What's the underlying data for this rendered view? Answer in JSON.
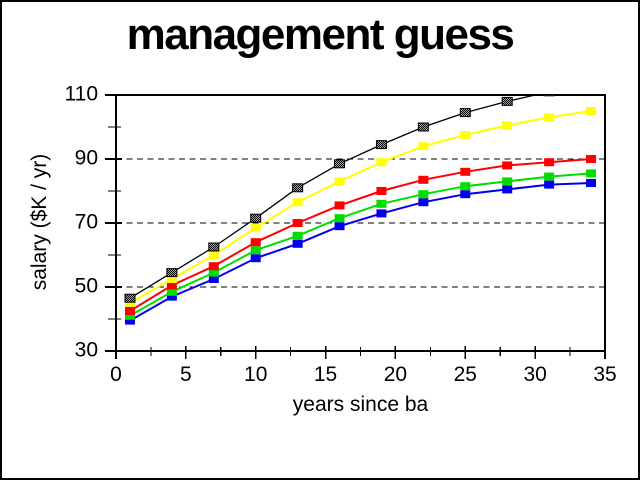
{
  "window": {
    "background_color": "#FFFFFF",
    "border_color": "#000000"
  },
  "chart_data": {
    "type": "line",
    "title": "management guess",
    "xlabel": "years since ba",
    "ylabel": "salary ($K / yr)",
    "xlim": [
      0,
      35
    ],
    "ylim": [
      30,
      110
    ],
    "x_tick_labels": [
      "0",
      "5",
      "10",
      "15",
      "20",
      "25",
      "30",
      "35"
    ],
    "x_ticks_major": [
      0,
      5,
      10,
      15,
      20,
      25,
      30,
      35
    ],
    "x_ticks_minor": [
      2.5,
      7.5,
      12.5,
      17.5,
      22.5,
      27.5,
      32.5
    ],
    "y_tick_labels": [
      "30",
      "50",
      "70",
      "90",
      "110"
    ],
    "y_ticks_major": [
      30,
      50,
      70,
      90,
      110
    ],
    "y_ticks_minor": [
      40,
      60,
      80,
      100
    ],
    "dashed_gridlines_at": [
      50,
      70,
      90
    ],
    "grid": "horizontal-dashed",
    "legend": "none",
    "marker_shape": "square",
    "x": [
      1,
      4,
      7,
      10,
      13,
      16,
      19,
      22,
      25,
      28,
      31,
      34
    ],
    "series": [
      {
        "name": "blue",
        "marker_color": "#0000EE",
        "line_color": "#0000EE",
        "marker": "solid-square",
        "values": [
          39.5,
          47,
          52.5,
          59,
          63.5,
          69,
          73,
          76.5,
          79,
          80.5,
          82,
          82.5
        ]
      },
      {
        "name": "green",
        "marker_color": "#00DD00",
        "line_color": "#00DD00",
        "marker": "solid-square",
        "values": [
          41,
          48.5,
          54.5,
          61.5,
          66,
          71.5,
          76,
          79,
          81.5,
          83,
          84.5,
          85.5
        ]
      },
      {
        "name": "red",
        "marker_color": "#FF0000",
        "line_color": "#FF0000",
        "marker": "solid-square",
        "values": [
          42.5,
          50.5,
          56.5,
          64,
          70,
          75.5,
          80,
          83.5,
          86,
          88,
          89,
          90
        ]
      },
      {
        "name": "yellow",
        "marker_color": "#FFFF00",
        "line_color": "#FFFF00",
        "marker": "solid-square",
        "values": [
          45,
          52.5,
          60,
          68.5,
          76.5,
          83,
          89,
          94,
          97.5,
          100.5,
          103,
          105
        ]
      },
      {
        "name": "orange-checkered",
        "marker_color": "#FF9900",
        "line_color": "#000000",
        "marker": "checkered-square-black-border",
        "values": [
          46.5,
          54.5,
          62.5,
          71.5,
          81,
          88.5,
          94.5,
          100,
          104.5,
          108,
          111,
          113
        ]
      }
    ],
    "note": "orange-checkered series rises above y-axis maximum (110) after ~year 30; its line is clipped at the top frame and its last two markers are not visible"
  }
}
